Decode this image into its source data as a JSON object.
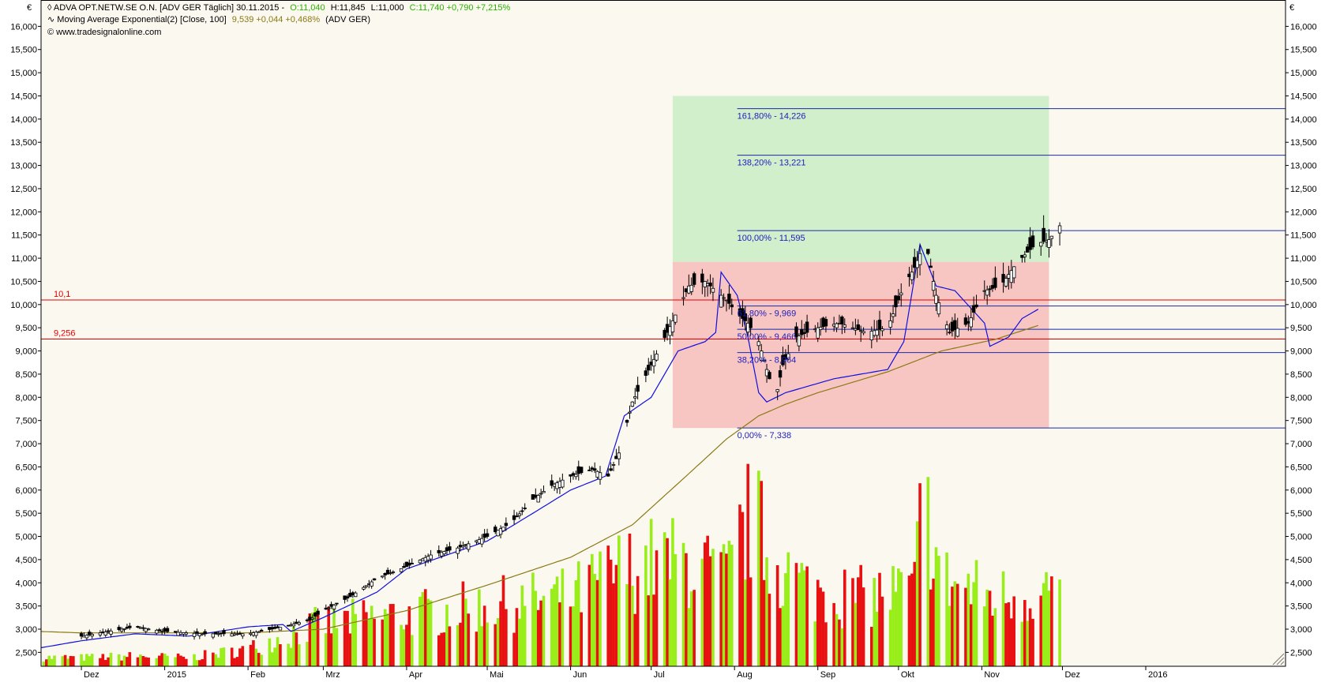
{
  "header": {
    "currency_left": "€",
    "currency_right": "€",
    "line1": {
      "symbol": "ADVA OPT.NETW.SE O.N. [ADV GER Täglich] 30.11.2015 -",
      "open": "O:11,040",
      "high": "H:11,845",
      "low": "L:11,000",
      "close_change": "C:11,740 +0,790 +7,215%"
    },
    "line2": {
      "label": "Moving Average Exponential(2) [Close, 100]",
      "value": "9,539 +0,044 +0,468%",
      "suffix": "(ADV GER)"
    },
    "line3": "© www.tradesignalonline.com"
  },
  "colors": {
    "background": "#fbf8f0",
    "candle": "#000000",
    "ema_fast": "#1010e0",
    "ema_slow": "#8a7a14",
    "support_line": "#e00000",
    "fib_line": "#1a2aa8",
    "fib_text": "#2020c0",
    "zone_green": "#d2efcc",
    "zone_red": "#f8c6c2",
    "volume_up": "#99ee1a",
    "volume_down": "#e81010"
  },
  "chart_data": {
    "type": "candlestick",
    "y_ticks": [
      "2,500",
      "3,000",
      "3,500",
      "4,000",
      "4,500",
      "5,000",
      "5,500",
      "6,000",
      "6,500",
      "7,000",
      "7,500",
      "8,000",
      "8,500",
      "9,000",
      "9,500",
      "10,000",
      "10,500",
      "11,000",
      "11,500",
      "12,000",
      "12,500",
      "13,000",
      "13,500",
      "14,000",
      "14,500",
      "15,000",
      "15,500",
      "16,000"
    ],
    "y_tick_values": [
      2.5,
      3,
      3.5,
      4,
      4.5,
      5,
      5.5,
      6,
      6.5,
      7,
      7.5,
      8,
      8.5,
      9,
      9.5,
      10,
      10.5,
      11,
      11.5,
      12,
      12.5,
      13,
      13.5,
      14,
      14.5,
      15,
      15.5,
      16
    ],
    "ylim": [
      2.2,
      16.5
    ],
    "x_tick_labels": [
      "Dez",
      "2015",
      "Feb",
      "Mrz",
      "Apr",
      "Mai",
      "Jun",
      "Jul",
      "Aug",
      "Sep",
      "Okt",
      "Nov",
      "Dez",
      "2016"
    ],
    "x_tick_days": [
      0,
      31,
      62,
      90,
      121,
      151,
      182,
      212,
      243,
      274,
      304,
      335,
      365,
      396
    ],
    "x_range_days": [
      -15,
      448
    ],
    "last_bar_day": 364,
    "support_lines": [
      {
        "value": 10.1,
        "label": "10,1"
      },
      {
        "value": 9.256,
        "label": "9,256"
      }
    ],
    "fib_levels": [
      {
        "value": 14.226,
        "label": "161,80% - 14,226"
      },
      {
        "value": 13.221,
        "label": "138,20% - 13,221"
      },
      {
        "value": 11.595,
        "label": "100,00% - 11,595"
      },
      {
        "value": 9.969,
        "label": "61,80% - 9,969"
      },
      {
        "value": 9.466,
        "label": "50,00% - 9,466"
      },
      {
        "value": 8.964,
        "label": "38,20% - 8,964"
      },
      {
        "value": 7.338,
        "label": "0,00% - 7,338"
      }
    ],
    "fib_start_day": 244,
    "zones": {
      "green": {
        "from_day": 220,
        "to_day": 360,
        "y_top": 14.5,
        "y_bottom": 10.92
      },
      "red": {
        "from_day": 220,
        "to_day": 360,
        "y_top": 10.92,
        "y_bottom": 7.338
      }
    },
    "price_anchors": [
      [
        0,
        2.85
      ],
      [
        10,
        2.95
      ],
      [
        20,
        3.05
      ],
      [
        31,
        2.95
      ],
      [
        45,
        2.9
      ],
      [
        62,
        2.9
      ],
      [
        75,
        3.05
      ],
      [
        85,
        3.2
      ],
      [
        90,
        3.4
      ],
      [
        100,
        3.7
      ],
      [
        110,
        4.1
      ],
      [
        121,
        4.35
      ],
      [
        130,
        4.6
      ],
      [
        140,
        4.75
      ],
      [
        151,
        5.0
      ],
      [
        160,
        5.3
      ],
      [
        168,
        5.8
      ],
      [
        175,
        6.1
      ],
      [
        182,
        6.3
      ],
      [
        190,
        6.45
      ],
      [
        196,
        6.3
      ],
      [
        200,
        6.8
      ],
      [
        205,
        7.9
      ],
      [
        212,
        8.7
      ],
      [
        218,
        9.4
      ],
      [
        226,
        10.4
      ],
      [
        232,
        10.5
      ],
      [
        240,
        10.1
      ],
      [
        244,
        9.8
      ],
      [
        248,
        9.6
      ],
      [
        252,
        9.2
      ],
      [
        256,
        8.4
      ],
      [
        258,
        7.9
      ],
      [
        261,
        8.7
      ],
      [
        266,
        9.3
      ],
      [
        274,
        9.5
      ],
      [
        282,
        9.6
      ],
      [
        292,
        9.4
      ],
      [
        300,
        9.5
      ],
      [
        306,
        10.4
      ],
      [
        310,
        10.8
      ],
      [
        314,
        11.4
      ],
      [
        318,
        10.2
      ],
      [
        323,
        9.4
      ],
      [
        330,
        9.6
      ],
      [
        336,
        10.3
      ],
      [
        342,
        10.4
      ],
      [
        348,
        10.9
      ],
      [
        355,
        11.3
      ],
      [
        360,
        11.4
      ],
      [
        364,
        11.7
      ]
    ],
    "ema_fast_anchors": [
      [
        -15,
        2.6
      ],
      [
        0,
        2.75
      ],
      [
        20,
        2.9
      ],
      [
        40,
        2.85
      ],
      [
        62,
        3.05
      ],
      [
        75,
        3.1
      ],
      [
        78,
        2.95
      ],
      [
        90,
        3.25
      ],
      [
        110,
        3.8
      ],
      [
        121,
        4.3
      ],
      [
        151,
        4.9
      ],
      [
        168,
        5.5
      ],
      [
        182,
        6.0
      ],
      [
        195,
        6.3
      ],
      [
        202,
        7.6
      ],
      [
        212,
        8.0
      ],
      [
        222,
        9.0
      ],
      [
        232,
        9.2
      ],
      [
        236,
        9.4
      ],
      [
        238,
        10.7
      ],
      [
        244,
        10.2
      ],
      [
        248,
        9.3
      ],
      [
        252,
        8.1
      ],
      [
        255,
        7.9
      ],
      [
        262,
        8.1
      ],
      [
        280,
        8.4
      ],
      [
        300,
        8.6
      ],
      [
        306,
        9.2
      ],
      [
        312,
        11.3
      ],
      [
        318,
        10.4
      ],
      [
        325,
        10.3
      ],
      [
        336,
        9.6
      ],
      [
        338,
        9.1
      ],
      [
        345,
        9.3
      ],
      [
        350,
        9.7
      ],
      [
        356,
        9.9
      ]
    ],
    "ema_slow_anchors": [
      [
        -15,
        2.95
      ],
      [
        0,
        2.92
      ],
      [
        30,
        2.92
      ],
      [
        62,
        2.92
      ],
      [
        90,
        3.0
      ],
      [
        121,
        3.4
      ],
      [
        151,
        3.95
      ],
      [
        182,
        4.55
      ],
      [
        205,
        5.25
      ],
      [
        225,
        6.3
      ],
      [
        240,
        7.1
      ],
      [
        252,
        7.6
      ],
      [
        262,
        7.85
      ],
      [
        274,
        8.1
      ],
      [
        300,
        8.55
      ],
      [
        320,
        9.0
      ],
      [
        340,
        9.25
      ],
      [
        356,
        9.55
      ]
    ],
    "volume_anchors": [
      [
        0,
        0.05
      ],
      [
        20,
        0.06
      ],
      [
        40,
        0.05
      ],
      [
        62,
        0.1
      ],
      [
        90,
        0.25
      ],
      [
        121,
        0.3
      ],
      [
        151,
        0.35
      ],
      [
        182,
        0.4
      ],
      [
        200,
        0.55
      ],
      [
        212,
        0.6
      ],
      [
        225,
        0.6
      ],
      [
        240,
        0.5
      ],
      [
        250,
        0.9
      ],
      [
        255,
        0.65
      ],
      [
        270,
        0.45
      ],
      [
        290,
        0.4
      ],
      [
        310,
        0.45
      ],
      [
        313,
        1.0
      ],
      [
        320,
        0.5
      ],
      [
        340,
        0.4
      ],
      [
        364,
        0.45
      ]
    ]
  }
}
